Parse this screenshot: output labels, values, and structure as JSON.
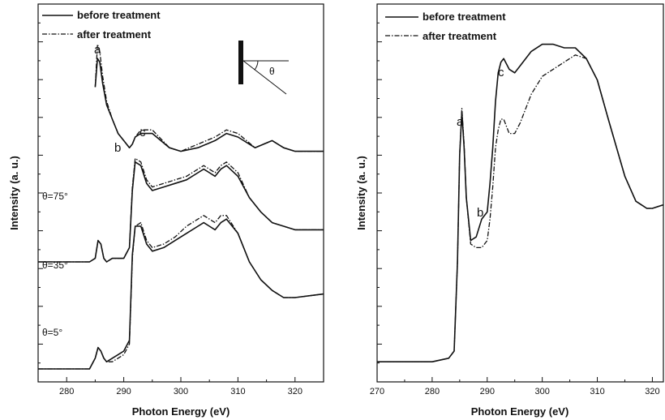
{
  "chart_data": [
    {
      "type": "line",
      "xlabel": "Photon Energy (eV)",
      "ylabel": "Intensity (a. u.)",
      "xlim": [
        275,
        325
      ],
      "xticks": [
        280,
        290,
        300,
        310,
        320
      ],
      "legend": {
        "placement": "top-left",
        "entries": [
          "before treatment",
          "after treatment"
        ]
      },
      "annotations": {
        "peaks": [
          "a",
          "b",
          "c"
        ],
        "angles": [
          "θ=75°",
          "θ=35°",
          "θ=5°"
        ],
        "inset_symbol": "θ"
      },
      "series": [
        {
          "name": "before treatment",
          "group": "θ=75°",
          "x": [
            285,
            285.4,
            285.8,
            286.3,
            287,
            288,
            289,
            290,
            291,
            291.5,
            292,
            293,
            295,
            298,
            300,
            303,
            306,
            308,
            310,
            313,
            316,
            318,
            320,
            325
          ],
          "y": [
            0.79,
            0.87,
            0.86,
            0.8,
            0.74,
            0.7,
            0.66,
            0.64,
            0.62,
            0.63,
            0.65,
            0.66,
            0.66,
            0.62,
            0.61,
            0.62,
            0.64,
            0.66,
            0.65,
            0.62,
            0.64,
            0.62,
            0.61,
            0.61
          ]
        },
        {
          "name": "after treatment",
          "group": "θ=75°",
          "x": [
            285,
            285.4,
            285.8,
            286.3,
            287,
            288,
            289,
            290,
            291,
            291.5,
            292,
            293,
            295,
            298,
            300,
            303,
            306,
            308,
            310,
            313,
            316,
            318,
            320,
            325
          ],
          "y": [
            0.79,
            0.91,
            0.89,
            0.82,
            0.75,
            0.7,
            0.66,
            0.64,
            0.62,
            0.63,
            0.65,
            0.67,
            0.67,
            0.62,
            0.61,
            0.63,
            0.65,
            0.67,
            0.66,
            0.62,
            0.64,
            0.62,
            0.61,
            0.61
          ]
        },
        {
          "name": "before treatment",
          "group": "θ=35°",
          "x": [
            275,
            284,
            285,
            285.5,
            286,
            286.5,
            287,
            288,
            290,
            291,
            291.5,
            292,
            293,
            294,
            295,
            297,
            299,
            301,
            303,
            304,
            305,
            306,
            307,
            308,
            310,
            312,
            314,
            316,
            318,
            320,
            325
          ],
          "y": [
            0.3,
            0.3,
            0.31,
            0.36,
            0.35,
            0.31,
            0.3,
            0.31,
            0.31,
            0.34,
            0.5,
            0.58,
            0.57,
            0.52,
            0.5,
            0.51,
            0.52,
            0.53,
            0.55,
            0.56,
            0.55,
            0.54,
            0.56,
            0.57,
            0.54,
            0.48,
            0.44,
            0.41,
            0.4,
            0.39,
            0.39
          ]
        },
        {
          "name": "after treatment",
          "group": "θ=35°",
          "x": [
            275,
            284,
            285,
            285.5,
            286,
            286.5,
            287,
            288,
            290,
            291,
            291.5,
            292,
            293,
            294,
            295,
            297,
            299,
            301,
            303,
            304,
            305,
            306,
            307,
            308,
            310,
            312,
            314,
            316,
            318,
            320,
            325
          ],
          "y": [
            0.3,
            0.3,
            0.31,
            0.36,
            0.35,
            0.31,
            0.3,
            0.31,
            0.31,
            0.34,
            0.51,
            0.59,
            0.58,
            0.53,
            0.51,
            0.52,
            0.53,
            0.54,
            0.56,
            0.57,
            0.56,
            0.55,
            0.57,
            0.58,
            0.55,
            0.48,
            0.44,
            0.41,
            0.4,
            0.39,
            0.39
          ]
        },
        {
          "name": "before treatment",
          "group": "θ=5°",
          "x": [
            275,
            284,
            285,
            285.5,
            286,
            286.5,
            287,
            288,
            289,
            290,
            291,
            291.5,
            292,
            293,
            294,
            295,
            297,
            299,
            301,
            303,
            304,
            305,
            306,
            307,
            308,
            310,
            312,
            314,
            316,
            318,
            320,
            325
          ],
          "y": [
            0.0,
            0.0,
            0.03,
            0.06,
            0.05,
            0.03,
            0.02,
            0.03,
            0.04,
            0.05,
            0.08,
            0.32,
            0.4,
            0.4,
            0.35,
            0.33,
            0.34,
            0.36,
            0.38,
            0.4,
            0.41,
            0.4,
            0.39,
            0.41,
            0.42,
            0.38,
            0.3,
            0.25,
            0.22,
            0.2,
            0.2,
            0.21
          ]
        },
        {
          "name": "after treatment",
          "group": "θ=5°",
          "x": [
            275,
            284,
            285,
            285.5,
            286,
            286.5,
            287,
            288,
            289,
            290,
            291,
            291.5,
            292,
            293,
            294,
            295,
            297,
            299,
            301,
            303,
            304,
            305,
            306,
            307,
            308,
            310,
            312,
            314,
            316,
            318,
            320,
            325
          ],
          "y": [
            0.0,
            0.0,
            0.03,
            0.06,
            0.05,
            0.03,
            0.02,
            0.02,
            0.03,
            0.04,
            0.07,
            0.31,
            0.4,
            0.41,
            0.36,
            0.34,
            0.35,
            0.37,
            0.4,
            0.42,
            0.43,
            0.42,
            0.41,
            0.43,
            0.43,
            0.38,
            0.3,
            0.25,
            0.22,
            0.2,
            0.2,
            0.21
          ]
        }
      ]
    },
    {
      "type": "line",
      "xlabel": "Photon Energy (eV)",
      "ylabel": "Intensity (a. u.)",
      "xlim": [
        270,
        322
      ],
      "xticks": [
        270,
        280,
        290,
        300,
        310,
        320
      ],
      "legend": {
        "placement": "top-left",
        "entries": [
          "before treatment",
          "after treatment"
        ]
      },
      "annotations": {
        "peaks": [
          "a",
          "b",
          "c"
        ]
      },
      "series": [
        {
          "name": "before treatment",
          "x": [
            270,
            280,
            283,
            284,
            284.6,
            285,
            285.4,
            285.8,
            286.2,
            287,
            288,
            289,
            290,
            290.5,
            291,
            291.5,
            292,
            292.5,
            293,
            294,
            295,
            296,
            298,
            300,
            302,
            304,
            306,
            308,
            310,
            312,
            315,
            317,
            319,
            320,
            322
          ],
          "y": [
            0.02,
            0.02,
            0.03,
            0.05,
            0.3,
            0.6,
            0.72,
            0.62,
            0.48,
            0.36,
            0.37,
            0.42,
            0.44,
            0.52,
            0.62,
            0.75,
            0.83,
            0.86,
            0.87,
            0.84,
            0.83,
            0.85,
            0.89,
            0.91,
            0.91,
            0.9,
            0.9,
            0.87,
            0.81,
            0.7,
            0.54,
            0.47,
            0.45,
            0.45,
            0.46
          ]
        },
        {
          "name": "after treatment",
          "x": [
            270,
            280,
            283,
            284,
            284.6,
            285,
            285.4,
            285.8,
            286.2,
            287,
            288,
            289,
            290,
            290.5,
            291,
            291.5,
            292,
            292.5,
            293,
            294,
            295,
            296,
            298,
            300,
            302,
            304,
            306,
            308,
            310,
            312,
            315,
            317,
            319,
            320,
            322
          ],
          "y": [
            0.02,
            0.02,
            0.03,
            0.05,
            0.3,
            0.6,
            0.73,
            0.63,
            0.48,
            0.35,
            0.34,
            0.34,
            0.36,
            0.42,
            0.51,
            0.62,
            0.67,
            0.7,
            0.7,
            0.66,
            0.66,
            0.69,
            0.77,
            0.82,
            0.84,
            0.86,
            0.88,
            0.87,
            0.81,
            0.7,
            0.54,
            0.47,
            0.45,
            0.45,
            0.46
          ]
        }
      ]
    }
  ]
}
